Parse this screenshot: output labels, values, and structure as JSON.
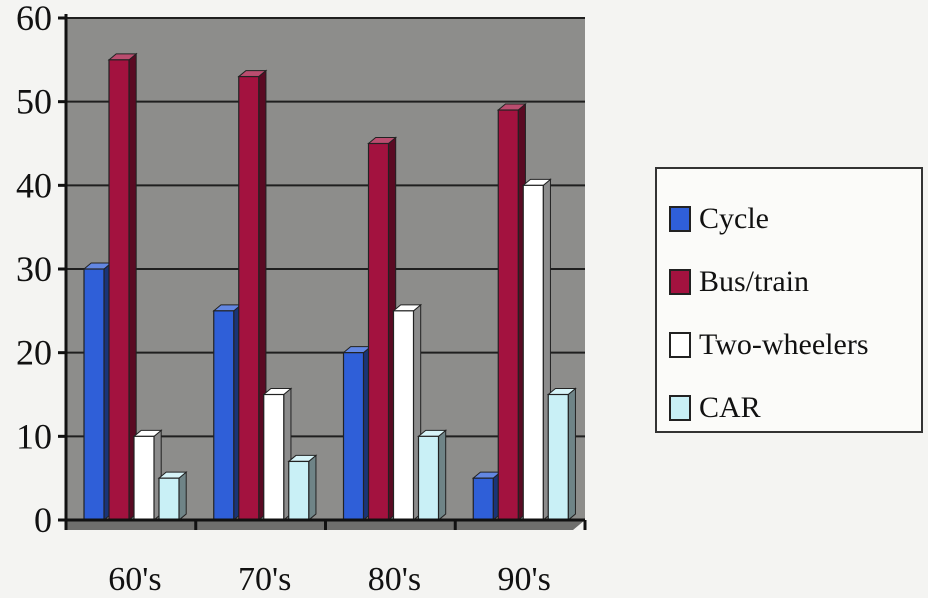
{
  "chart_data": {
    "type": "bar",
    "categories": [
      "60's",
      "70's",
      "80's",
      "90's"
    ],
    "series": [
      {
        "name": "Cycle",
        "values": [
          30,
          25,
          20,
          5
        ]
      },
      {
        "name": "Bus/train",
        "values": [
          55,
          53,
          45,
          49
        ]
      },
      {
        "name": "Two-wheelers",
        "values": [
          10,
          15,
          25,
          40
        ]
      },
      {
        "name": "CAR",
        "values": [
          5,
          7,
          10,
          15
        ]
      }
    ],
    "title": "",
    "xlabel": "",
    "ylabel": "",
    "ylim": [
      0,
      60
    ],
    "yticks": [
      0,
      10,
      20,
      30,
      40,
      50,
      60
    ],
    "grid": true,
    "legend_position": "right",
    "colors": {
      "Cycle": "#2f5fd8",
      "Bus/train": "#a3123f",
      "Two-wheelers": "#ffffff",
      "CAR": "#c9f0f6",
      "plot_background": "#8d8d8b"
    }
  }
}
